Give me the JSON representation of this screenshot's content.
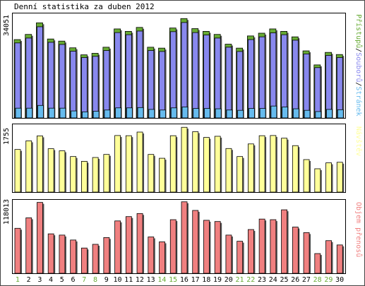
{
  "title": "Denní statistika za duben 2012",
  "chart_data": {
    "type": "bar",
    "categories": [
      "1",
      "2",
      "3",
      "4",
      "5",
      "6",
      "7",
      "8",
      "9",
      "10",
      "11",
      "12",
      "13",
      "14",
      "15",
      "16",
      "17",
      "18",
      "19",
      "20",
      "21",
      "22",
      "23",
      "24",
      "25",
      "26",
      "27",
      "28",
      "29",
      "30"
    ],
    "weekend_days": [
      "1",
      "7",
      "8",
      "14",
      "15",
      "21",
      "22",
      "28",
      "29"
    ],
    "panels": [
      {
        "ymax_label": "34051",
        "ymax": 34051,
        "series": [
          {
            "name": "Přístupů",
            "color": "#66aa33",
            "values": [
              25700,
              27400,
              31200,
              25900,
              25200,
              23000,
              20700,
              21200,
              23200,
              29200,
              28400,
              29700,
              23200,
              22900,
              29500,
              32600,
              29300,
              28400,
              27400,
              24200,
              22900,
              26900,
              27800,
              29200,
              28400,
              26600,
              22000,
              17400,
              21500,
              20800
            ]
          },
          {
            "name": "Souborů",
            "color": "#8888ee",
            "values": [
              24600,
              26200,
              29900,
              24800,
              24100,
              21900,
              19800,
              20200,
              22100,
              28000,
              27300,
              28500,
              22100,
              21800,
              28300,
              31300,
              28000,
              27200,
              26200,
              23200,
              21800,
              25700,
              26600,
              27900,
              27300,
              25500,
              21000,
              16500,
              20500,
              19800
            ]
          },
          {
            "name": "Stránek",
            "color": "#66bbee",
            "values": [
              3200,
              3200,
              4100,
              3200,
              3200,
              2300,
              2000,
              2200,
              2600,
              3300,
              3300,
              3400,
              2800,
              2600,
              3300,
              3600,
              3100,
              3100,
              3000,
              2600,
              2500,
              3100,
              3100,
              3900,
              3600,
              3000,
              2500,
              2100,
              2800,
              2700
            ]
          }
        ]
      },
      {
        "ymax_label": "1755",
        "ymax": 1755,
        "series": [
          {
            "name": "Návštěv",
            "color": "#ffff99",
            "values": [
              1115,
              1340,
              1470,
              1135,
              1080,
              930,
              805,
              905,
              985,
              1480,
              1475,
              1570,
              985,
              885,
              1475,
              1695,
              1580,
              1430,
              1460,
              1140,
              930,
              1260,
              1475,
              1480,
              1410,
              1215,
              850,
              610,
              765,
              780
            ]
          }
        ]
      },
      {
        "ymax_label": "118013",
        "ymax": 118013,
        "series": [
          {
            "name": "Objem přenosů",
            "color": "#f08080",
            "values": [
              73000,
              90000,
              115000,
              64000,
              62000,
              54000,
              41000,
              47000,
              58000,
              85000,
              92000,
              97000,
              59000,
              51000,
              87000,
              116000,
              102000,
              86000,
              84000,
              62000,
              52000,
              71000,
              88000,
              87000,
              103000,
              75000,
              66000,
              32000,
              53000,
              46000
            ]
          }
        ]
      }
    ]
  }
}
